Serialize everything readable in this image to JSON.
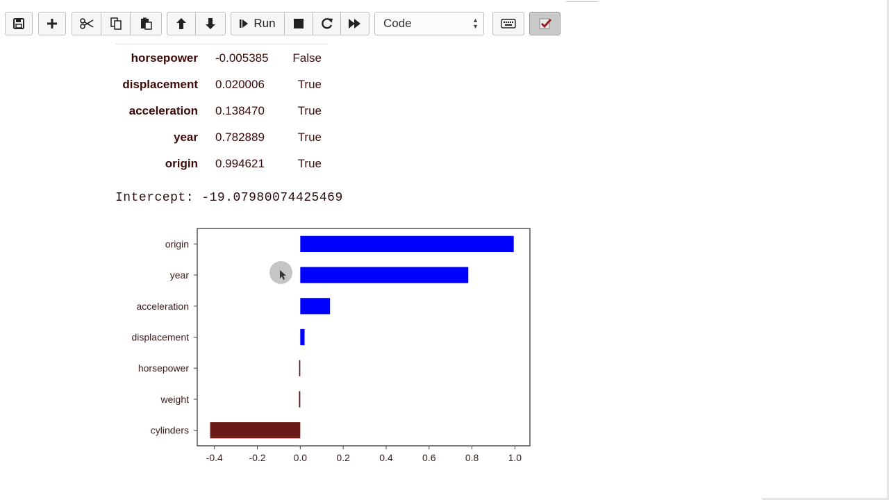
{
  "toolbar": {
    "run_label": "Run",
    "cell_type": "Code",
    "icons": [
      "save-icon",
      "plus-icon",
      "scissors-icon",
      "copy-icon",
      "paste-icon",
      "arrow-up-icon",
      "arrow-down-icon",
      "run-icon",
      "stop-icon",
      "restart-icon",
      "fast-forward-icon",
      "keyboard-icon",
      "checkmark-icon"
    ]
  },
  "table": {
    "rows": [
      {
        "name": "horsepower",
        "coef": "-0.005385",
        "flag": "False"
      },
      {
        "name": "displacement",
        "coef": "0.020006",
        "flag": "True"
      },
      {
        "name": "acceleration",
        "coef": "0.138470",
        "flag": "True"
      },
      {
        "name": "year",
        "coef": "0.782889",
        "flag": "True"
      },
      {
        "name": "origin",
        "coef": "0.994621",
        "flag": "True"
      }
    ]
  },
  "intercept_text": "Intercept: -19.07980074425469",
  "chart_data": {
    "type": "bar",
    "orientation": "horizontal",
    "categories": [
      "origin",
      "year",
      "acceleration",
      "displacement",
      "horsepower",
      "weight",
      "cylinders"
    ],
    "values": [
      0.994621,
      0.782889,
      0.13847,
      0.020006,
      -0.005385,
      -0.006,
      -0.42
    ],
    "colors": [
      "#0000ff",
      "#0000ff",
      "#0000ff",
      "#0000ff",
      "#5c1414",
      "#5c1414",
      "#6b1a1a"
    ],
    "xlim": [
      -0.48,
      1.07
    ],
    "xticks": [
      "-0.4",
      "-0.2",
      "0.0",
      "0.2",
      "0.4",
      "0.6",
      "0.8",
      "1.0"
    ],
    "xtick_values": [
      -0.4,
      -0.2,
      0.0,
      0.2,
      0.4,
      0.6,
      0.8,
      1.0
    ],
    "title": "",
    "xlabel": "",
    "ylabel": ""
  }
}
